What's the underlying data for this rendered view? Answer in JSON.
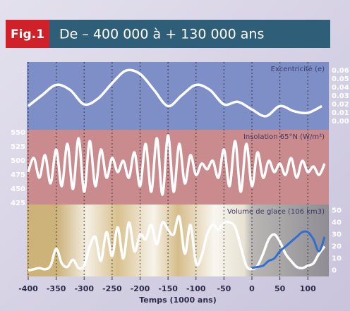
{
  "header": {
    "fig": "Fig.1",
    "title": "De – 400 000 à + 130 000 ans"
  },
  "chart_data": [
    {
      "type": "line",
      "label": "Excentricité (e)",
      "axis_side": "right",
      "color": "#7d8fc6",
      "xlim": [
        -400,
        135
      ],
      "ylim": [
        -0.01,
        0.07
      ],
      "yticks": [
        0.06,
        0.05,
        0.04,
        0.03,
        0.02,
        0.01,
        {
          "value": 0,
          "label": "0.00"
        }
      ],
      "series": [
        {
          "color": "#ffffff",
          "x": [
            -400,
            -375,
            -350,
            -325,
            -300,
            -275,
            -250,
            -225,
            -200,
            -175,
            -150,
            -125,
            -100,
            -75,
            -50,
            -25,
            0,
            25,
            50,
            75,
            100,
            125
          ],
          "values": [
            0.018,
            0.031,
            0.043,
            0.037,
            0.02,
            0.027,
            0.045,
            0.06,
            0.056,
            0.037,
            0.018,
            0.031,
            0.043,
            0.037,
            0.02,
            0.023,
            0.014,
            0.006,
            0.018,
            0.012,
            0.01,
            0.018
          ]
        }
      ]
    },
    {
      "type": "line",
      "label": "Insolation 65°N (W/m²)",
      "axis_side": "left",
      "color": "#c98b8e",
      "xlim": [
        -400,
        135
      ],
      "ylim": [
        422.5,
        555
      ],
      "yticks": [
        550,
        525,
        500,
        475,
        450,
        425
      ],
      "series": [
        {
          "color": "#ffffff",
          "x": [
            -400,
            -390,
            -380,
            -370,
            -360,
            -350,
            -340,
            -330,
            -320,
            -310,
            -300,
            -290,
            -280,
            -270,
            -260,
            -250,
            -240,
            -230,
            -220,
            -210,
            -200,
            -190,
            -180,
            -170,
            -160,
            -150,
            -140,
            -130,
            -120,
            -110,
            -100,
            -90,
            -80,
            -70,
            -60,
            -50,
            -40,
            -30,
            -20,
            -10,
            0,
            10,
            20,
            30,
            40,
            50,
            60,
            70,
            80,
            90,
            100,
            110,
            120,
            130
          ],
          "values": [
            480,
            505,
            470,
            510,
            460,
            520,
            455,
            530,
            450,
            540,
            445,
            535,
            455,
            520,
            470,
            505,
            480,
            500,
            470,
            515,
            455,
            530,
            445,
            540,
            440,
            545,
            445,
            530,
            460,
            510,
            475,
            495,
            485,
            500,
            470,
            520,
            455,
            535,
            445,
            530,
            455,
            515,
            470,
            500,
            480,
            495,
            475,
            505,
            470,
            500,
            480,
            490,
            475,
            495
          ]
        }
      ]
    },
    {
      "type": "line",
      "label": "Volume   de glace (106 km3)",
      "axis_side": "right",
      "color": "#cdb27a",
      "xlim": [
        -400,
        135
      ],
      "ylim": [
        -5,
        55
      ],
      "yticks": [
        50,
        40,
        30,
        20,
        10,
        0
      ],
      "xticks": [
        -400,
        -350,
        -300,
        -250,
        -200,
        -150,
        -100,
        -50,
        0,
        50,
        100
      ],
      "xlabel": "Temps (1000 ans)",
      "series": [
        {
          "color": "#ffffff",
          "x": [
            -400,
            -390,
            -380,
            -370,
            -360,
            -350,
            -340,
            -330,
            -320,
            -310,
            -300,
            -290,
            -280,
            -270,
            -260,
            -250,
            -240,
            -230,
            -220,
            -210,
            -200,
            -190,
            -180,
            -170,
            -160,
            -150,
            -140,
            -130,
            -120,
            -110,
            -100,
            -90,
            -80,
            -70,
            -60,
            -50,
            -40,
            -30,
            -20,
            -10,
            0,
            10,
            20,
            30,
            40,
            50,
            60,
            70,
            80,
            90,
            100,
            110,
            120,
            130
          ],
          "values": [
            0,
            1,
            2,
            1,
            4,
            18,
            6,
            3,
            9,
            2,
            4,
            20,
            28,
            8,
            32,
            12,
            36,
            10,
            40,
            16,
            30,
            26,
            38,
            22,
            40,
            34,
            30,
            45,
            14,
            38,
            6,
            12,
            30,
            38,
            34,
            40,
            40,
            36,
            20,
            4,
            1,
            4,
            14,
            26,
            30,
            24,
            14,
            8,
            3,
            2,
            4,
            6,
            14,
            20
          ]
        },
        {
          "color": "#2f6fd2",
          "x": [
            0,
            10,
            20,
            30,
            40,
            50,
            60,
            70,
            80,
            90,
            100,
            110,
            120,
            130
          ],
          "values": [
            2,
            3,
            4,
            8,
            10,
            16,
            20,
            24,
            28,
            32,
            32,
            26,
            16,
            28
          ]
        }
      ]
    }
  ]
}
